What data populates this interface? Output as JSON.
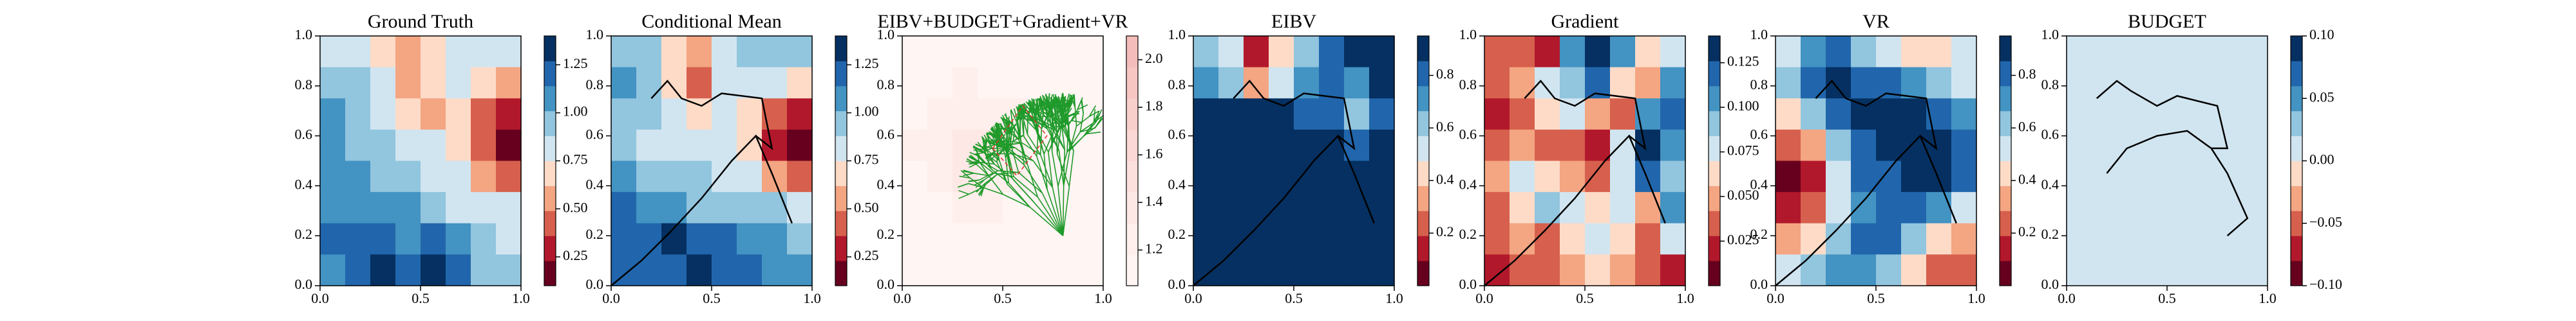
{
  "chart_data": [
    {
      "type": "heatmap",
      "title": "Ground Truth",
      "xlim": [
        0,
        1
      ],
      "ylim": [
        0,
        1
      ],
      "xticks": [
        {
          "value": 0,
          "label": "0.0"
        },
        0.5,
        {
          "value": 1,
          "label": "1.0"
        }
      ],
      "yticks": [
        {
          "value": 0,
          "label": "0.0"
        },
        0.2,
        0.4,
        0.6,
        0.8,
        {
          "value": 1,
          "label": "1.0"
        }
      ],
      "clim": [
        0.1,
        1.4
      ],
      "cticks": [
        0.25,
        {
          "value": 0.5,
          "label": "0.50"
        },
        0.75,
        {
          "value": 1,
          "label": "1.00"
        },
        1.25
      ],
      "colors": [
        "#67001f",
        "#b2182b",
        "#d6604d",
        "#f4a582",
        "#fddbc7",
        "#d1e5f0",
        "#92c5de",
        "#4393c3",
        "#2166ac",
        "#053061"
      ],
      "z": [
        [
          0.85,
          0.8,
          0.7,
          0.55,
          0.65,
          0.8,
          0.8,
          0.75
        ],
        [
          1.0,
          0.9,
          0.75,
          0.6,
          0.7,
          0.85,
          0.7,
          0.6
        ],
        [
          1.05,
          0.95,
          0.85,
          0.7,
          0.6,
          0.7,
          0.45,
          0.3
        ],
        [
          1.1,
          1.0,
          0.95,
          0.8,
          0.75,
          0.7,
          0.4,
          0.2
        ],
        [
          1.05,
          1.05,
          1.0,
          0.95,
          0.85,
          0.75,
          0.55,
          0.45
        ],
        [
          1.1,
          1.1,
          1.05,
          1.05,
          0.95,
          0.85,
          0.8,
          0.8
        ],
        [
          1.15,
          1.2,
          1.2,
          1.1,
          1.15,
          1.05,
          0.9,
          0.85
        ],
        [
          1.1,
          1.25,
          1.3,
          1.2,
          1.3,
          1.2,
          1.0,
          0.9
        ]
      ]
    },
    {
      "type": "heatmap",
      "title": "Conditional Mean",
      "xlim": [
        0,
        1
      ],
      "ylim": [
        0,
        1
      ],
      "xticks": [
        {
          "value": 0,
          "label": "0.0"
        },
        0.5,
        {
          "value": 1,
          "label": "1.0"
        }
      ],
      "yticks": [
        {
          "value": 0,
          "label": "0.0"
        },
        0.2,
        0.4,
        0.6,
        0.8,
        {
          "value": 1,
          "label": "1.0"
        }
      ],
      "clim": [
        0.1,
        1.4
      ],
      "cticks": [
        0.25,
        {
          "value": 0.5,
          "label": "0.50"
        },
        0.75,
        {
          "value": 1,
          "label": "1.00"
        },
        1.25
      ],
      "colors": [
        "#67001f",
        "#b2182b",
        "#d6604d",
        "#f4a582",
        "#fddbc7",
        "#d1e5f0",
        "#92c5de",
        "#4393c3",
        "#2166ac",
        "#053061"
      ],
      "z": [
        [
          1.0,
          0.95,
          0.7,
          0.55,
          0.8,
          0.9,
          0.95,
          0.9
        ],
        [
          1.05,
          0.9,
          0.65,
          0.45,
          0.75,
          0.85,
          0.75,
          0.7
        ],
        [
          1.0,
          0.9,
          0.8,
          0.7,
          0.75,
          0.7,
          0.45,
          0.3
        ],
        [
          0.9,
          0.85,
          0.8,
          0.8,
          0.75,
          0.7,
          0.35,
          0.15
        ],
        [
          1.05,
          1.0,
          0.95,
          0.9,
          0.85,
          0.75,
          0.6,
          0.45
        ],
        [
          1.15,
          1.1,
          1.05,
          1.0,
          1.0,
          0.95,
          0.9,
          0.8
        ],
        [
          1.2,
          1.2,
          1.3,
          1.25,
          1.15,
          1.1,
          1.05,
          1.0
        ],
        [
          1.2,
          1.2,
          1.25,
          1.3,
          1.2,
          1.15,
          1.1,
          1.05
        ]
      ],
      "path": {
        "color": "#000000",
        "x": [
          0,
          0.15,
          0.3,
          0.45,
          0.6,
          0.72,
          0.8,
          0.9,
          null,
          0.2,
          0.28,
          0.35,
          0.45,
          0.55,
          0.75,
          0.8,
          0.72
        ],
        "y": [
          0,
          0.1,
          0.22,
          0.35,
          0.5,
          0.6,
          0.45,
          0.25,
          null,
          0.75,
          0.82,
          0.75,
          0.72,
          0.77,
          0.75,
          0.55,
          0.6
        ]
      }
    },
    {
      "type": "heatmap",
      "title": "EIBV+BUDGET+Gradient+VR",
      "xlim": [
        0,
        1
      ],
      "ylim": [
        0,
        1
      ],
      "xticks": [
        {
          "value": 0,
          "label": "0.0"
        },
        0.5,
        {
          "value": 1,
          "label": "1.0"
        }
      ],
      "yticks": [
        {
          "value": 0,
          "label": "0.0"
        },
        0.2,
        0.4,
        0.6,
        0.8,
        {
          "value": 1,
          "label": "1.0"
        }
      ],
      "clim": [
        1.05,
        2.1
      ],
      "cticks": [
        1.2,
        1.4,
        1.6,
        1.8,
        {
          "value": 2,
          "label": "2.0"
        }
      ],
      "colors": [
        "#fff5f3",
        "#feefec",
        "#fde8e5",
        "#fce0dd",
        "#fbd8d5",
        "#f9cfcc",
        "#f7c6c3",
        "#f4bcba"
      ],
      "z": [
        [
          1.1,
          1.1,
          1.15,
          1.1,
          1.1,
          1.1,
          1.1,
          1.1
        ],
        [
          1.1,
          1.15,
          1.2,
          1.15,
          1.1,
          1.1,
          1.1,
          1.1
        ],
        [
          1.15,
          1.2,
          1.3,
          1.25,
          1.2,
          1.1,
          1.1,
          1.1
        ],
        [
          1.2,
          1.3,
          1.4,
          1.35,
          1.25,
          1.15,
          1.1,
          1.1
        ],
        [
          1.15,
          1.25,
          1.35,
          1.3,
          1.2,
          1.15,
          1.1,
          1.1
        ],
        [
          1.1,
          1.15,
          1.2,
          1.2,
          1.15,
          1.1,
          1.1,
          1.1
        ],
        [
          1.1,
          1.1,
          1.15,
          1.1,
          1.1,
          1.1,
          1.1,
          1.1
        ],
        [
          1.1,
          1.1,
          1.1,
          1.1,
          1.1,
          1.1,
          1.1,
          1.1
        ]
      ]
    },
    {
      "type": "heatmap",
      "title": "EIBV",
      "xlim": [
        0,
        1
      ],
      "ylim": [
        0,
        1
      ],
      "xticks": [
        {
          "value": 0,
          "label": "0.0"
        },
        0.5,
        {
          "value": 1,
          "label": "1.0"
        }
      ],
      "yticks": [
        {
          "value": 0,
          "label": "0.0"
        },
        0.2,
        0.4,
        0.6,
        0.8,
        {
          "value": 1,
          "label": "1.0"
        }
      ],
      "clim": [
        0,
        0.95
      ],
      "cticks": [
        0.2,
        0.4,
        0.6,
        0.8
      ],
      "colors": [
        "#67001f",
        "#b2182b",
        "#d6604d",
        "#f4a582",
        "#fddbc7",
        "#d1e5f0",
        "#92c5de",
        "#4393c3",
        "#2166ac",
        "#053061"
      ],
      "z": [
        [
          0.6,
          0.5,
          0.1,
          0.4,
          0.6,
          0.85,
          0.9,
          0.9
        ],
        [
          0.7,
          0.6,
          0.3,
          0.55,
          0.75,
          0.85,
          0.7,
          0.9
        ],
        [
          0.9,
          0.9,
          0.9,
          0.9,
          0.85,
          0.85,
          0.6,
          0.85
        ],
        [
          0.9,
          0.9,
          0.9,
          0.9,
          0.9,
          0.9,
          0.85,
          0.9
        ],
        [
          0.9,
          0.9,
          0.9,
          0.9,
          0.9,
          0.9,
          0.9,
          0.9
        ],
        [
          0.9,
          0.9,
          0.9,
          0.9,
          0.9,
          0.9,
          0.9,
          0.9
        ],
        [
          0.9,
          0.9,
          0.9,
          0.9,
          0.9,
          0.9,
          0.9,
          0.9
        ],
        [
          0.9,
          0.9,
          0.9,
          0.9,
          0.9,
          0.9,
          0.9,
          0.9
        ]
      ],
      "path": {
        "color": "#000000",
        "x": [
          0,
          0.15,
          0.3,
          0.45,
          0.6,
          0.72,
          0.8,
          0.9,
          null,
          0.2,
          0.28,
          0.35,
          0.45,
          0.55,
          0.75,
          0.8,
          0.72
        ],
        "y": [
          0,
          0.1,
          0.22,
          0.35,
          0.5,
          0.6,
          0.45,
          0.25,
          null,
          0.75,
          0.82,
          0.75,
          0.72,
          0.77,
          0.75,
          0.55,
          0.6
        ]
      }
    },
    {
      "type": "heatmap",
      "title": "Gradient",
      "xlim": [
        0,
        1
      ],
      "ylim": [
        0,
        1
      ],
      "xticks": [
        {
          "value": 0,
          "label": "0.0"
        },
        0.5,
        {
          "value": 1,
          "label": "1.0"
        }
      ],
      "yticks": [
        {
          "value": 0,
          "label": "0.0"
        },
        0.2,
        0.4,
        0.6,
        0.8,
        {
          "value": 1,
          "label": "1.0"
        }
      ],
      "clim": [
        0,
        0.14
      ],
      "cticks": [
        0.025,
        {
          "value": 0.05,
          "label": "0.050"
        },
        0.075,
        {
          "value": 0.1,
          "label": "0.100"
        },
        0.125
      ],
      "colors": [
        "#67001f",
        "#b2182b",
        "#d6604d",
        "#f4a582",
        "#fddbc7",
        "#d1e5f0",
        "#92c5de",
        "#4393c3",
        "#2166ac",
        "#053061"
      ],
      "z": [
        [
          0.04,
          0.03,
          0.02,
          0.1,
          0.13,
          0.1,
          0.06,
          0.08
        ],
        [
          0.03,
          0.05,
          0.07,
          0.09,
          0.12,
          0.06,
          0.05,
          0.1
        ],
        [
          0.02,
          0.03,
          0.06,
          0.07,
          0.05,
          0.03,
          0.1,
          0.12
        ],
        [
          0.03,
          0.05,
          0.04,
          0.03,
          0.02,
          0.08,
          0.13,
          0.1
        ],
        [
          0.05,
          0.07,
          0.06,
          0.05,
          0.04,
          0.07,
          0.12,
          0.09
        ],
        [
          0.04,
          0.06,
          0.09,
          0.07,
          0.06,
          0.08,
          0.05,
          0.1
        ],
        [
          0.03,
          0.05,
          0.04,
          0.06,
          0.08,
          0.06,
          0.04,
          0.07
        ],
        [
          0.02,
          0.03,
          0.04,
          0.05,
          0.06,
          0.05,
          0.03,
          0.02
        ]
      ],
      "path": {
        "color": "#000000",
        "x": [
          0,
          0.15,
          0.3,
          0.45,
          0.6,
          0.72,
          0.8,
          0.9,
          null,
          0.2,
          0.28,
          0.35,
          0.45,
          0.55,
          0.75,
          0.8,
          0.72
        ],
        "y": [
          0,
          0.1,
          0.22,
          0.35,
          0.5,
          0.6,
          0.45,
          0.25,
          null,
          0.75,
          0.82,
          0.75,
          0.72,
          0.77,
          0.75,
          0.55,
          0.6
        ]
      }
    },
    {
      "type": "heatmap",
      "title": "VR",
      "xlim": [
        0,
        1
      ],
      "ylim": [
        0,
        1
      ],
      "xticks": [
        {
          "value": 0,
          "label": "0.0"
        },
        0.5,
        {
          "value": 1,
          "label": "1.0"
        }
      ],
      "yticks": [
        {
          "value": 0,
          "label": "0.0"
        },
        0.2,
        0.4,
        0.6,
        0.8,
        {
          "value": 1,
          "label": "1.0"
        }
      ],
      "clim": [
        0,
        0.95
      ],
      "cticks": [
        0.2,
        0.4,
        0.6,
        0.8
      ],
      "colors": [
        "#67001f",
        "#b2182b",
        "#d6604d",
        "#f4a582",
        "#fddbc7",
        "#d1e5f0",
        "#92c5de",
        "#4393c3",
        "#2166ac",
        "#053061"
      ],
      "z": [
        [
          0.5,
          0.7,
          0.8,
          0.6,
          0.5,
          0.4,
          0.45,
          0.5
        ],
        [
          0.6,
          0.85,
          0.9,
          0.85,
          0.8,
          0.75,
          0.6,
          0.5
        ],
        [
          0.4,
          0.6,
          0.85,
          0.9,
          0.9,
          0.9,
          0.85,
          0.7
        ],
        [
          0.2,
          0.3,
          0.6,
          0.8,
          0.9,
          0.9,
          0.9,
          0.85
        ],
        [
          0.05,
          0.15,
          0.5,
          0.8,
          0.85,
          0.9,
          0.9,
          0.85
        ],
        [
          0.1,
          0.2,
          0.5,
          0.75,
          0.85,
          0.85,
          0.7,
          0.5
        ],
        [
          0.3,
          0.4,
          0.6,
          0.8,
          0.85,
          0.65,
          0.4,
          0.3
        ],
        [
          0.5,
          0.6,
          0.7,
          0.75,
          0.6,
          0.4,
          0.25,
          0.2
        ]
      ],
      "path": {
        "color": "#000000",
        "x": [
          0,
          0.15,
          0.3,
          0.45,
          0.6,
          0.72,
          0.8,
          0.9,
          null,
          0.2,
          0.28,
          0.35,
          0.45,
          0.55,
          0.75,
          0.8,
          0.72
        ],
        "y": [
          0,
          0.1,
          0.22,
          0.35,
          0.5,
          0.6,
          0.45,
          0.25,
          null,
          0.75,
          0.82,
          0.75,
          0.72,
          0.77,
          0.75,
          0.55,
          0.6
        ]
      }
    },
    {
      "type": "heatmap",
      "title": "BUDGET",
      "xlim": [
        0,
        1
      ],
      "ylim": [
        0,
        1
      ],
      "xticks": [
        {
          "value": 0,
          "label": "0.0"
        },
        0.5,
        {
          "value": 1,
          "label": "1.0"
        }
      ],
      "yticks": [
        {
          "value": 0,
          "label": "0.0"
        },
        0.2,
        0.4,
        0.6,
        0.8,
        {
          "value": 1,
          "label": "1.0"
        }
      ],
      "clim": [
        -0.1,
        0.1
      ],
      "cticks": [
        {
          "value": -0.1,
          "label": "−0.10"
        },
        {
          "value": -0.05,
          "label": "−0.05"
        },
        {
          "value": 0,
          "label": "0.00"
        },
        0.05,
        {
          "value": 0.1,
          "label": "0.10"
        }
      ],
      "colors": [
        "#67001f",
        "#b2182b",
        "#d6604d",
        "#f4a582",
        "#fddbc7",
        "#d1e5f0",
        "#92c5de",
        "#4393c3",
        "#2166ac",
        "#053061"
      ],
      "z": [
        [
          0,
          0,
          0,
          0,
          0,
          0,
          0,
          0
        ],
        [
          0,
          0,
          0,
          0,
          0,
          0,
          0,
          0
        ],
        [
          0,
          0,
          0,
          0,
          0,
          0,
          0,
          0
        ],
        [
          0,
          0,
          0,
          0,
          0,
          0,
          0,
          0
        ],
        [
          0,
          0,
          0,
          0,
          0,
          0,
          0,
          0
        ],
        [
          0,
          0,
          0,
          0,
          0,
          0,
          0,
          0
        ],
        [
          0,
          0,
          0,
          0,
          0,
          0,
          0,
          0
        ],
        [
          0,
          0,
          0,
          0,
          0,
          0,
          0,
          0
        ]
      ],
      "path": {
        "color": "#000000",
        "x": [
          0.8,
          0.9,
          0.8,
          0.72,
          0.6,
          0.45,
          0.3,
          0.2,
          null,
          0.15,
          0.25,
          0.32,
          0.45,
          0.55,
          0.75,
          0.8,
          0.72
        ],
        "y": [
          0.2,
          0.27,
          0.45,
          0.55,
          0.62,
          0.6,
          0.55,
          0.45,
          null,
          0.75,
          0.82,
          0.78,
          0.72,
          0.76,
          0.72,
          0.55,
          0.55
        ]
      }
    }
  ]
}
